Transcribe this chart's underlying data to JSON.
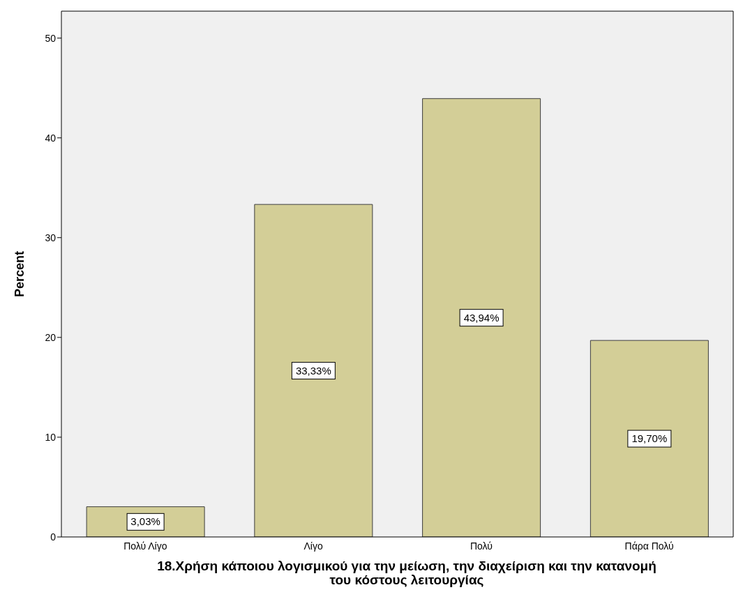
{
  "chart_data": {
    "type": "bar",
    "xlabel": "18.Χρήση κάποιου λογισμικού για την μείωση, την διαχείριση και την κατανομή του κόστους λειτουργίας",
    "ylabel": "Percent",
    "categories": [
      "Πολύ Λίγο",
      "Λίγο",
      "Πολύ",
      "Πάρα Πολύ"
    ],
    "values": [
      3.03,
      33.33,
      43.94,
      19.7
    ],
    "value_labels": [
      "3,03%",
      "33,33%",
      "43,94%",
      "19,70%"
    ],
    "color": "#d3ce97",
    "ylim": [
      0,
      52.7
    ],
    "yticks": [
      0,
      10,
      20,
      30,
      40,
      50
    ],
    "grid": false
  }
}
